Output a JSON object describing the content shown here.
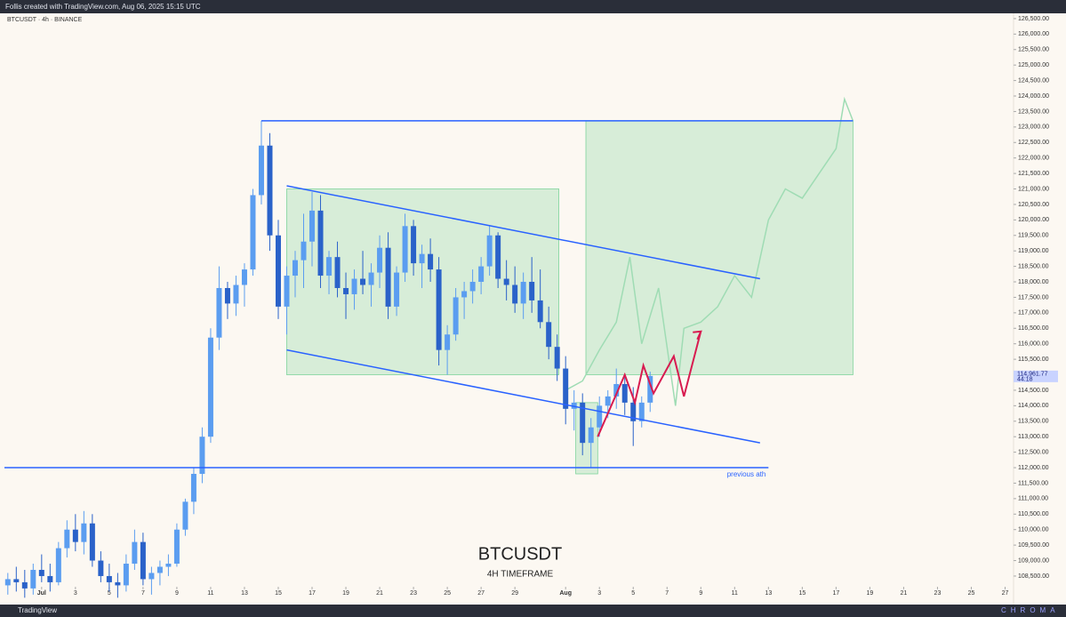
{
  "header": {
    "text": "Follis created with TradingView.com, Aug 06, 2025 15:15 UTC"
  },
  "footer": {
    "brand": "TradingView",
    "watermark": "CHROMA"
  },
  "chart_data": {
    "type": "candlestick",
    "symbol": "BTCUSDT · 4h · BINANCE",
    "title": "BTCUSDT",
    "subtitle": "4H TIMEFRAME",
    "x": [
      -1,
      -0.5,
      0,
      0.5,
      1,
      1.5,
      2,
      2.5,
      3,
      3.5,
      4,
      4.5,
      5,
      5.5,
      6,
      6.5,
      7,
      7.5,
      8,
      8.5,
      9,
      9.5,
      10,
      10.5,
      11,
      11.5,
      12,
      12.5,
      13,
      13.5,
      14,
      14.5,
      15,
      15.5,
      16,
      16.5,
      17,
      17.5,
      18,
      18.5,
      19,
      19.5,
      20,
      20.5,
      21,
      21.5,
      22,
      22.5,
      23,
      23.5,
      24,
      24.5,
      25,
      25.5,
      26,
      26.5,
      27,
      27.5,
      28,
      28.5,
      29,
      29.5,
      30,
      30.5,
      31,
      31.5,
      32,
      32.5,
      33,
      33.5,
      34,
      34.5,
      35,
      35.5,
      36,
      36.5,
      37
    ],
    "open": [
      108200,
      108400,
      108300,
      108100,
      108700,
      108500,
      108300,
      109400,
      110000,
      109600,
      110200,
      109000,
      108500,
      108300,
      108200,
      108900,
      109600,
      108400,
      108600,
      108800,
      108900,
      110000,
      110900,
      111800,
      113000,
      116200,
      117800,
      117300,
      117900,
      118400,
      120800,
      122400,
      119500,
      117200,
      118200,
      118700,
      119300,
      120300,
      118200,
      118800,
      117800,
      117600,
      118100,
      117900,
      118300,
      119100,
      117200,
      118300,
      119800,
      118600,
      118900,
      118400,
      115800,
      116300,
      117500,
      117700,
      118000,
      118500,
      119500,
      118100,
      117900,
      117300,
      118000,
      117400,
      116700,
      115900,
      115200,
      113900,
      114100,
      112800,
      113300,
      114000,
      114300,
      114700,
      114100,
      113500,
      114100
    ],
    "high": [
      108600,
      108800,
      108700,
      108900,
      109200,
      108900,
      109600,
      110300,
      110500,
      110600,
      110500,
      109300,
      108900,
      108600,
      109200,
      110000,
      109900,
      108800,
      109000,
      109200,
      110200,
      111000,
      112000,
      113300,
      116500,
      118500,
      118000,
      118200,
      118600,
      121000,
      123200,
      122800,
      120000,
      118500,
      119000,
      120200,
      120900,
      120800,
      119000,
      119300,
      118300,
      118400,
      119000,
      118600,
      119500,
      119600,
      118500,
      120200,
      120000,
      119200,
      119400,
      118800,
      116600,
      117800,
      118000,
      118400,
      118800,
      119800,
      119600,
      118700,
      118500,
      118300,
      118800,
      118400,
      117200,
      116300,
      115600,
      114500,
      114400,
      113600,
      114300,
      114500,
      115200,
      115000,
      114600,
      114300,
      115100
    ],
    "low": [
      107900,
      108000,
      107800,
      107900,
      108300,
      108000,
      108200,
      109100,
      109300,
      109200,
      108800,
      108300,
      108000,
      107800,
      108000,
      108700,
      108200,
      107900,
      108200,
      108500,
      108800,
      109800,
      110500,
      111500,
      112800,
      115800,
      116800,
      116900,
      117200,
      118200,
      120500,
      119000,
      116800,
      116300,
      117500,
      117800,
      118500,
      117800,
      117600,
      117500,
      116800,
      117100,
      117600,
      117200,
      117800,
      116800,
      116900,
      118000,
      118200,
      117800,
      118000,
      115300,
      115000,
      116100,
      116800,
      117300,
      117600,
      118200,
      117800,
      117400,
      117000,
      116800,
      117000,
      116500,
      115500,
      114800,
      113400,
      113200,
      112400,
      112000,
      113000,
      113600,
      113900,
      113700,
      112700,
      113300,
      113800
    ],
    "close": [
      108400,
      108300,
      108100,
      108700,
      108500,
      108300,
      109400,
      110000,
      109600,
      110200,
      109000,
      108500,
      108300,
      108200,
      108900,
      109600,
      108400,
      108600,
      108800,
      108900,
      110000,
      110900,
      111800,
      113000,
      116200,
      117800,
      117300,
      117900,
      118400,
      120800,
      122400,
      119500,
      117200,
      118200,
      118700,
      119300,
      120300,
      118200,
      118800,
      117800,
      117600,
      118100,
      117900,
      118300,
      119100,
      117200,
      118300,
      119800,
      118600,
      118900,
      118400,
      115800,
      116300,
      117500,
      117700,
      118000,
      118500,
      119500,
      118100,
      117900,
      117300,
      118000,
      117400,
      116700,
      115900,
      115200,
      113900,
      114100,
      112800,
      113300,
      114000,
      114300,
      114700,
      114100,
      113500,
      114100,
      114962
    ],
    "up_color": "#5b9df0",
    "down_color": "#2a62c9",
    "xlim": [
      -1.2,
      58.5
    ],
    "ylim": [
      107580,
      126670
    ],
    "xticks": [
      {
        "value": 1,
        "label": "Jul"
      },
      3,
      5,
      7,
      9,
      11,
      13,
      15,
      17,
      19,
      21,
      23,
      25,
      27,
      29,
      {
        "value": 32,
        "label": "Aug"
      },
      {
        "value": 34,
        "label": "3"
      },
      {
        "value": 36,
        "label": "5"
      },
      {
        "value": 38,
        "label": "7"
      },
      {
        "value": 40,
        "label": "9"
      },
      {
        "value": 42,
        "label": "11"
      },
      {
        "value": 44,
        "label": "13"
      },
      {
        "value": 46,
        "label": "15"
      },
      {
        "value": 48,
        "label": "17"
      },
      {
        "value": 50,
        "label": "19"
      },
      {
        "value": 52,
        "label": "21"
      },
      {
        "value": 54,
        "label": "23"
      },
      {
        "value": 56,
        "label": "25"
      },
      {
        "value": 58,
        "label": "27"
      }
    ],
    "yticks": [
      {
        "value": 108500,
        "label": "108,500.00"
      },
      {
        "value": 109000,
        "label": "109,000.00"
      },
      {
        "value": 109500,
        "label": "109,500.00"
      },
      {
        "value": 110000,
        "label": "110,000.00"
      },
      {
        "value": 110500,
        "label": "110,500.00"
      },
      {
        "value": 111000,
        "label": "111,000.00"
      },
      {
        "value": 111500,
        "label": "111,500.00"
      },
      {
        "value": 112000,
        "label": "112,000.00"
      },
      {
        "value": 112500,
        "label": "112,500.00"
      },
      {
        "value": 113000,
        "label": "113,000.00"
      },
      {
        "value": 113500,
        "label": "113,500.00"
      },
      {
        "value": 114000,
        "label": "114,000.00"
      },
      {
        "value": 114500,
        "label": "114,500.00"
      },
      {
        "value": 115000,
        "label": "115,000.00"
      },
      {
        "value": 115500,
        "label": "115,500.00"
      },
      {
        "value": 116000,
        "label": "116,000.00"
      },
      {
        "value": 116500,
        "label": "116,500.00"
      },
      {
        "value": 117000,
        "label": "117,000.00"
      },
      {
        "value": 117500,
        "label": "117,500.00"
      },
      {
        "value": 118000,
        "label": "118,000.00"
      },
      {
        "value": 118500,
        "label": "118,500.00"
      },
      {
        "value": 119000,
        "label": "119,000.00"
      },
      {
        "value": 119500,
        "label": "119,500.00"
      },
      {
        "value": 120000,
        "label": "120,000.00"
      },
      {
        "value": 120500,
        "label": "120,500.00"
      },
      {
        "value": 121000,
        "label": "121,000.00"
      },
      {
        "value": 121500,
        "label": "121,500.00"
      },
      {
        "value": 122000,
        "label": "122,000.00"
      },
      {
        "value": 122500,
        "label": "122,500.00"
      },
      {
        "value": 123000,
        "label": "123,000.00"
      },
      {
        "value": 123500,
        "label": "123,500.00"
      },
      {
        "value": 124000,
        "label": "124,000.00"
      },
      {
        "value": 124500,
        "label": "124,500.00"
      },
      {
        "value": 125000,
        "label": "125,000.00"
      },
      {
        "value": 125500,
        "label": "125,500.00"
      },
      {
        "value": 126000,
        "label": "126,000.00"
      },
      {
        "value": 126500,
        "label": "126,500.00"
      }
    ],
    "last_price": {
      "value": 114961.77,
      "label": "114,961.77"
    },
    "countdown": "44:18",
    "zones": [
      {
        "x": [
          15.5,
          31.6
        ],
        "y": [
          115000,
          121000
        ]
      },
      {
        "x": [
          33.2,
          49
        ],
        "y": [
          115000,
          123200
        ]
      },
      {
        "x": [
          32.6,
          33.9
        ],
        "y": [
          111800,
          114100
        ]
      }
    ],
    "levels": [
      {
        "value": 123200,
        "x": [
          14,
          49
        ],
        "color": "#2962ff"
      },
      {
        "value": 112000,
        "x": [
          -1.2,
          44
        ],
        "color": "#2962ff",
        "label": "previous ath"
      }
    ],
    "channel": [
      {
        "x": [
          15.5,
          43.5
        ],
        "values": [
          121100,
          118100
        ]
      },
      {
        "x": [
          15.5,
          43.5
        ],
        "values": [
          115800,
          112800
        ]
      }
    ],
    "projection": {
      "x": [
        32,
        33,
        34,
        35,
        35.8,
        36.5,
        37.5,
        38.5,
        39,
        40,
        41,
        42,
        43,
        44,
        45,
        46,
        47,
        48,
        48.5,
        49
      ],
      "values": [
        114500,
        114800,
        115800,
        116700,
        118800,
        116000,
        117800,
        114000,
        116500,
        116700,
        117200,
        118200,
        117500,
        120000,
        121000,
        120700,
        121500,
        122300,
        123900,
        123200
      ],
      "color": "#9fdcb4"
    },
    "path": {
      "x": [
        33.9,
        35.5,
        36.1,
        36.6,
        37.2,
        38.4,
        39,
        40
      ],
      "values": [
        113000,
        115000,
        114100,
        115300,
        114400,
        115600,
        114300,
        116400
      ],
      "color": "#d81b50"
    }
  }
}
